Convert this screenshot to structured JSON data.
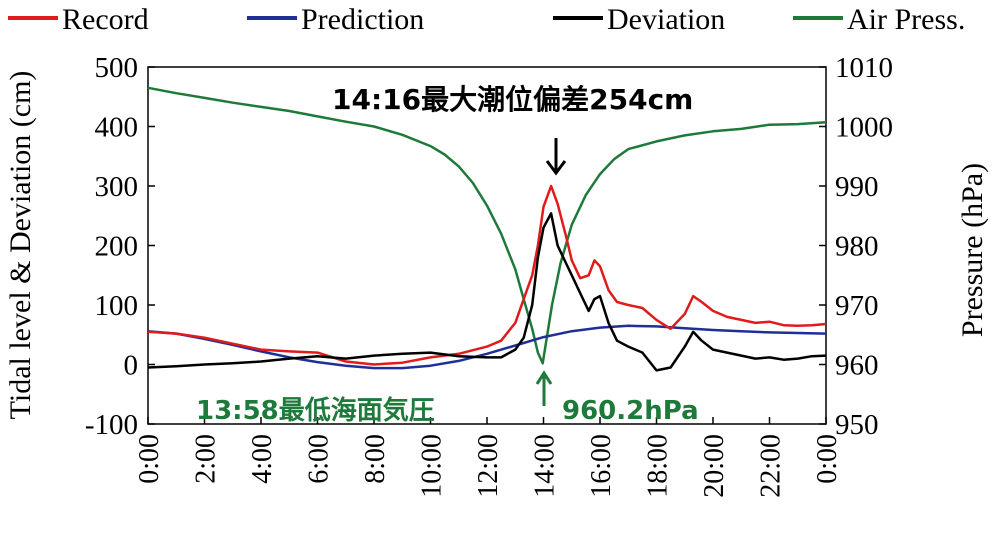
{
  "chart_data": {
    "type": "line",
    "legend_position": "top",
    "grid": false,
    "ylabel": "Tidal level & Deviation (cm)",
    "y2label": "Pressure (hPa)",
    "xlabel": "",
    "ylim": [
      -100,
      500
    ],
    "y2lim": [
      950,
      1010
    ],
    "xlim_hours": [
      0,
      24
    ],
    "x_tick_labels": [
      "0:00",
      "2:00",
      "4:00",
      "6:00",
      "8:00",
      "10:00",
      "12:00",
      "14:00",
      "16:00",
      "18:00",
      "20:00",
      "22:00",
      "0:00"
    ],
    "y_tick_labels": [
      "-100",
      "0",
      "100",
      "200",
      "300",
      "400",
      "500"
    ],
    "y2_tick_labels": [
      "950",
      "960",
      "970",
      "980",
      "990",
      "1000",
      "1010"
    ],
    "series": [
      {
        "name": "Record",
        "color": "#e01b1b",
        "axis": "left",
        "x": [
          0,
          1,
          2,
          3,
          4,
          5,
          6,
          7,
          8,
          9,
          10,
          11,
          12,
          12.5,
          13,
          13.3,
          13.6,
          13.8,
          14,
          14.27,
          14.5,
          14.8,
          15,
          15.3,
          15.6,
          15.8,
          16,
          16.3,
          16.6,
          17,
          17.5,
          18,
          18.5,
          19,
          19.3,
          19.6,
          20,
          20.5,
          21,
          21.5,
          22,
          22.5,
          23,
          23.5,
          24
        ],
        "values": [
          55,
          52,
          45,
          35,
          25,
          22,
          20,
          5,
          0,
          3,
          12,
          18,
          30,
          40,
          70,
          110,
          150,
          200,
          265,
          300,
          270,
          215,
          175,
          145,
          150,
          175,
          165,
          125,
          105,
          100,
          95,
          75,
          60,
          85,
          115,
          105,
          90,
          80,
          75,
          70,
          72,
          66,
          65,
          66,
          68
        ]
      },
      {
        "name": "Prediction",
        "color": "#1f2f96",
        "axis": "left",
        "x": [
          0,
          1,
          2,
          3,
          4,
          5,
          6,
          7,
          8,
          9,
          10,
          11,
          12,
          13,
          14,
          15,
          16,
          17,
          18,
          19,
          20,
          21,
          22,
          23,
          24
        ],
        "values": [
          56,
          52,
          43,
          33,
          22,
          12,
          4,
          -2,
          -6,
          -6,
          -2,
          6,
          18,
          32,
          46,
          56,
          62,
          65,
          64,
          61,
          58,
          56,
          54,
          53,
          52
        ]
      },
      {
        "name": "Deviation",
        "color": "#000000",
        "axis": "left",
        "x": [
          0,
          1,
          2,
          3,
          4,
          5,
          6,
          7,
          8,
          9,
          10,
          11,
          12,
          12.5,
          13,
          13.3,
          13.6,
          13.8,
          14,
          14.27,
          14.5,
          14.8,
          15,
          15.3,
          15.6,
          15.8,
          16,
          16.3,
          16.6,
          17,
          17.5,
          18,
          18.5,
          19,
          19.3,
          19.6,
          20,
          20.5,
          21,
          21.5,
          22,
          22.5,
          23,
          23.5,
          24
        ],
        "values": [
          -5,
          -3,
          0,
          2,
          5,
          10,
          14,
          10,
          15,
          18,
          20,
          14,
          12,
          12,
          25,
          45,
          100,
          180,
          230,
          254,
          200,
          170,
          150,
          120,
          90,
          110,
          115,
          70,
          40,
          30,
          20,
          -10,
          -5,
          30,
          55,
          40,
          25,
          20,
          15,
          10,
          12,
          8,
          10,
          14,
          15
        ]
      },
      {
        "name": "Air Press.",
        "color": "#1e7a3a",
        "axis": "right",
        "x": [
          0,
          1,
          2,
          3,
          4,
          5,
          6,
          7,
          8,
          9,
          10,
          10.5,
          11,
          11.5,
          12,
          12.5,
          13,
          13.3,
          13.6,
          13.8,
          13.97,
          14.1,
          14.3,
          14.6,
          15,
          15.5,
          16,
          16.5,
          17,
          18,
          19,
          20,
          21,
          22,
          23,
          24
        ],
        "values": [
          1006.5,
          1005.6,
          1004.8,
          1004,
          1003.3,
          1002.6,
          1001.7,
          1000.8,
          1000,
          998.6,
          996.7,
          995.3,
          993.3,
          990.5,
          986.7,
          982,
          976,
          971,
          966,
          962,
          960.2,
          964,
          970,
          977,
          983.5,
          988.5,
          992,
          994.5,
          996.2,
          997.5,
          998.5,
          999.2,
          999.6,
          1000.3,
          1000.4,
          1000.7
        ]
      }
    ],
    "annotations": {
      "max_deviation": "14:16最大潮位偏差254cm",
      "min_pressure_time": "13:58最低海面気圧",
      "min_pressure_value": "960.2hPa"
    }
  }
}
